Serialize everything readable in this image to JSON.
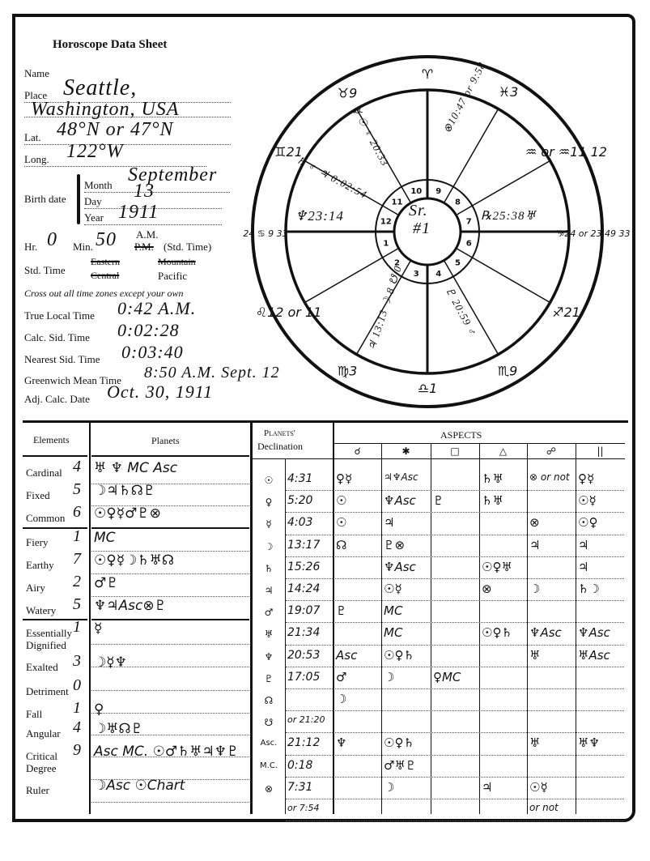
{
  "header": {
    "title": "Horoscope Data Sheet"
  },
  "form": {
    "name_label": "Name",
    "place_label": "Place",
    "place_value_1": "Seattle,",
    "place_value_2": "Washington, USA",
    "lat_label": "Lat.",
    "lat_value": "48°N or 47°N",
    "long_label": "Long.",
    "long_value": "122°W",
    "birth_date_label": "Birth date",
    "month_label": "Month",
    "month_value": "September",
    "day_label": "Day",
    "day_value": "13",
    "year_label": "Year",
    "year_value": "1911",
    "hr_label": "Hr.",
    "hr_value": "0",
    "min_label": "Min.",
    "min_value": "50",
    "am_label": "A.M.",
    "pm_label": "P.M.",
    "std_time_suffix": "(Std. Time)",
    "std_time_label": "Std. Time",
    "zones": {
      "eastern": "Eastern",
      "central": "Central",
      "mountain": "Mountain",
      "pacific": "Pacific"
    },
    "instruction": "Cross out all time zones except your own",
    "true_local_label": "True Local Time",
    "true_local_value": "0:42 A.M.",
    "calc_sid_label": "Calc. Sid. Time",
    "calc_sid_value": "0:02:28",
    "nearest_sid_label": "Nearest Sid. Time",
    "nearest_sid_value": "0:03:40",
    "gmt_label": "Greenwich Mean Time",
    "gmt_value": "8:50 A.M. Sept. 12",
    "adj_calc_label": "Adj. Calc. Date",
    "adj_calc_value": "Oct. 30, 1911"
  },
  "wheel": {
    "center_text_1": "Sr.",
    "center_text_2": "#1",
    "houses": [
      "1",
      "2",
      "3",
      "4",
      "5",
      "6",
      "7",
      "8",
      "9",
      "10",
      "11",
      "12"
    ],
    "cusps": [
      {
        "text": "♈",
        "pos": "top"
      },
      {
        "text": "♓3",
        "pos": "upper-right-1"
      },
      {
        "text": "♒ or ♒11 12",
        "pos": "upper-right-2"
      },
      {
        "text": "♑24 or 23 49 33",
        "pos": "right"
      },
      {
        "text": "♐21",
        "pos": "lower-right-1"
      },
      {
        "text": "♏9",
        "pos": "lower-right-2"
      },
      {
        "text": "♎1",
        "pos": "bottom"
      },
      {
        "text": "♍3",
        "pos": "lower-left-2"
      },
      {
        "text": "♌12 or 11",
        "pos": "lower-left-1"
      },
      {
        "text": "24 ♋ 9 33",
        "pos": "left"
      },
      {
        "text": "♊21",
        "pos": "upper-left-2"
      },
      {
        "text": "♉9",
        "pos": "upper-left-1"
      }
    ],
    "planet_notes": {
      "asc_line": "♆23:14",
      "desc_line": "℞25:38♅",
      "upper_right": "⊗10:47 or 9:58",
      "upper_left_1": "♄ ♂ ♃ 0:02:54",
      "upper_left_2": "☿ ☉ ♀ 20:33",
      "lower_1": "♃ 13:13 ☽ 8 ☋ 0",
      "lower_2": "♇ 20:59 ♂"
    }
  },
  "table": {
    "elements_header": "Elements",
    "planets_header": "Planets",
    "declination_header_1": "Planets'",
    "declination_header_2": "Declination",
    "aspects_header": "ASPECTS",
    "aspect_symbols": [
      "☌",
      "✱",
      "□",
      "△",
      "☍",
      "||"
    ],
    "elements": [
      {
        "label": "Cardinal",
        "count": "4",
        "planets": "♅ ♆ MC Asc"
      },
      {
        "label": "Fixed",
        "count": "5",
        "planets": "☽♃♄☊♇"
      },
      {
        "label": "Common",
        "count": "6",
        "planets": "☉♀☿♂♇⊗"
      },
      {
        "label": "Fiery",
        "count": "1",
        "planets": "MC"
      },
      {
        "label": "Earthy",
        "count": "7",
        "planets": "☉♀☿☽♄♅☊"
      },
      {
        "label": "Airy",
        "count": "2",
        "planets": "♂♇"
      },
      {
        "label": "Watery",
        "count": "5",
        "planets": "♆♃Asc⊗♇"
      },
      {
        "label": "Essentially Dignified",
        "count": "1",
        "planets": "☿"
      },
      {
        "label": "Exalted",
        "count": "3",
        "planets": "☽☿♆"
      },
      {
        "label": "Detriment",
        "count": "0",
        "planets": ""
      },
      {
        "label": "Fall",
        "count": "1",
        "planets": "♀"
      },
      {
        "label": "Angular",
        "count": "4",
        "planets": "☽♅☊♇"
      },
      {
        "label": "Critical Degree",
        "count": "9",
        "planets": "Asc MC. ☉♂♄♅♃♆♇"
      },
      {
        "label": "Ruler",
        "count": "",
        "planets": "☽Asc ☉Chart"
      }
    ],
    "declination_rows": [
      {
        "planet": "☉",
        "decl": "4:31",
        "aspects": [
          "♀☿",
          "♃♆Asc",
          "",
          "♄♅",
          "⊗ or not",
          "♀☿"
        ]
      },
      {
        "planet": "♀",
        "decl": "5:20",
        "aspects": [
          "☉",
          "♆Asc",
          "♇",
          "♄♅",
          "",
          "☉☿"
        ]
      },
      {
        "planet": "☿",
        "decl": "4:03",
        "aspects": [
          "☉",
          "♃",
          "",
          "",
          "⊗",
          "☉♀"
        ]
      },
      {
        "planet": "☽",
        "decl": "13:17",
        "aspects": [
          "☊",
          "♇⊗",
          "",
          "",
          "♃",
          "♃"
        ]
      },
      {
        "planet": "♄",
        "decl": "15:26",
        "aspects": [
          "",
          "♆Asc",
          "",
          "☉♀♅",
          "",
          "♃"
        ]
      },
      {
        "planet": "♃",
        "decl": "14:24",
        "aspects": [
          "",
          "☉☿",
          "",
          "⊗",
          "☽",
          "♄☽"
        ]
      },
      {
        "planet": "♂",
        "decl": "19:07",
        "aspects": [
          "♇",
          "MC",
          "",
          "",
          "",
          ""
        ]
      },
      {
        "planet": "♅",
        "decl": "21:34",
        "aspects": [
          "",
          "MC",
          "",
          "☉♀♄",
          "♆Asc",
          "♆Asc"
        ]
      },
      {
        "planet": "♆",
        "decl": "20:53",
        "aspects": [
          "Asc",
          "☉♀♄",
          "",
          "",
          "♅",
          "♅Asc"
        ]
      },
      {
        "planet": "♇",
        "decl": "17:05",
        "aspects": [
          "♂",
          "☽",
          "♀MC",
          "",
          "",
          ""
        ]
      },
      {
        "planet": "☊",
        "decl": "",
        "aspects": [
          "☽",
          "",
          "",
          "",
          "",
          ""
        ]
      },
      {
        "planet": "☋",
        "decl": "or 21:20",
        "aspects": [
          "",
          "",
          "",
          "",
          "",
          ""
        ]
      },
      {
        "planet": "Asc.",
        "decl": "21:12",
        "aspects": [
          "♆",
          "☉♀♄",
          "",
          "",
          "♅",
          "♅♆"
        ]
      },
      {
        "planet": "M.C.",
        "decl": "0:18",
        "aspects": [
          "",
          "♂♅♇",
          "",
          "",
          "",
          ""
        ]
      },
      {
        "planet": "⊗",
        "decl": "7:31",
        "aspects": [
          "",
          "☽",
          "",
          "♃",
          "☉☿",
          ""
        ]
      },
      {
        "planet": "",
        "decl": "or 7:54",
        "aspects": [
          "",
          "",
          "",
          "",
          "or not",
          ""
        ]
      }
    ]
  }
}
